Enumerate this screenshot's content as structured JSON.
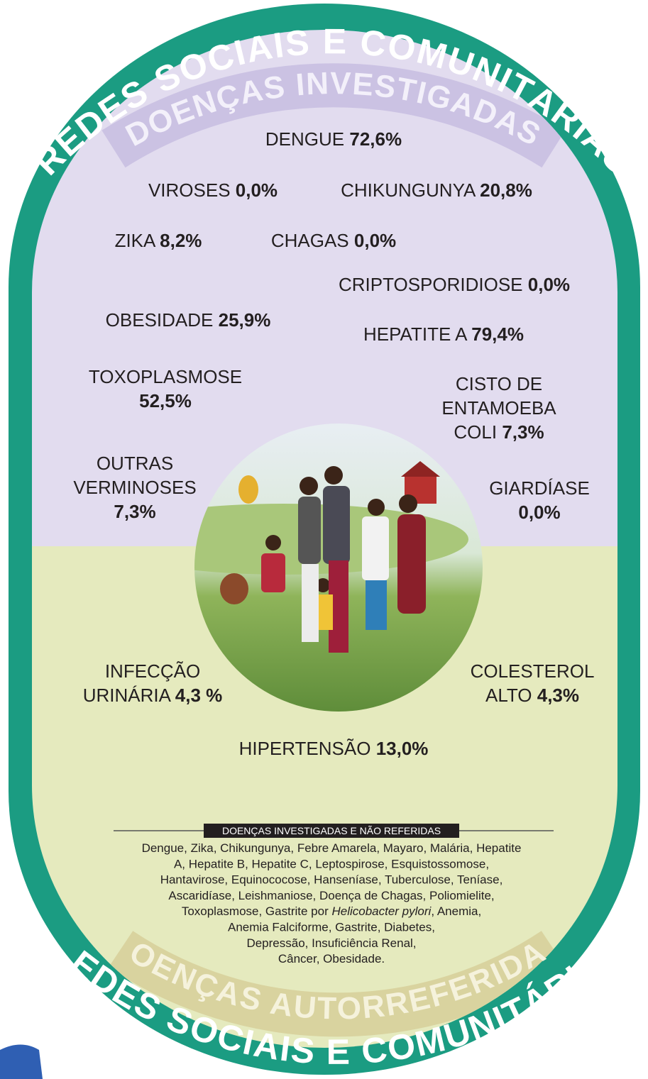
{
  "header": {
    "top_ring": "REDES SOCIAIS E COMUNITÁRIAS",
    "top_band": "DOENÇAS INVESTIGADAS"
  },
  "items": [
    {
      "name": [
        "DENGUE"
      ],
      "value": "72,6%"
    },
    {
      "name": [
        "VIROSES"
      ],
      "value": "0,0%"
    },
    {
      "name": [
        "CHIKUNGUNYA"
      ],
      "value": "20,8%"
    },
    {
      "name": [
        "ZIKA"
      ],
      "value": "8,2%"
    },
    {
      "name": [
        "CHAGAS"
      ],
      "value": "0,0%"
    },
    {
      "name": [
        "CRIPTOSPORIDIOSE"
      ],
      "value": "0,0%"
    },
    {
      "name": [
        "OBESIDADE"
      ],
      "value": "25,9%"
    },
    {
      "name": [
        "HEPATITE A"
      ],
      "value": "79,4%"
    },
    {
      "name": [
        "TOXOPLASMOSE"
      ],
      "value": "52,5%"
    },
    {
      "name": [
        "CISTO DE",
        "ENTAMOEBA",
        "COLI"
      ],
      "value": "7,3%"
    },
    {
      "name": [
        "OUTRAS",
        "VERMINOSES"
      ],
      "value": "7,3%"
    },
    {
      "name": [
        "GIARDÍASE"
      ],
      "value": "0,0%"
    },
    {
      "name": [
        "INFECÇÃO",
        "URINÁRIA"
      ],
      "value": "4,3 %"
    },
    {
      "name": [
        "COLESTEROL",
        "ALTO"
      ],
      "value": "4,3%"
    },
    {
      "name": [
        "HIPERTENSÃO"
      ],
      "value": "13,0%"
    }
  ],
  "note": {
    "title": "DOENÇAS INVESTIGADAS E NÃO REFERIDAS",
    "lines": [
      "Dengue, Zika, Chikungunya, Febre Amarela, Mayaro, Malária, Hepatite",
      "A, Hepatite B, Hepatite C, Leptospirose, Esquistossomose,",
      "Hantavirose, Equinococose, Hanseníase, Tuberculose, Teníase,",
      "Ascaridíase, Leishmaniose, Doença de Chagas, Poliomielite,",
      {
        "before": "Toxoplasmose, Gastrite por ",
        "italic": "Helicobacter pylori",
        "after": ", Anemia,"
      },
      "Anemia Falciforme, Gastrite, Diabetes,",
      "Depressão, Insuficiência Renal,",
      "Câncer, Obesidade."
    ]
  },
  "footer": {
    "bottom_band": "DOENÇAS AUTORREFERIDAS",
    "bottom_ring": "REDES SOCIAIS E COMUNITÁRIAS"
  }
}
